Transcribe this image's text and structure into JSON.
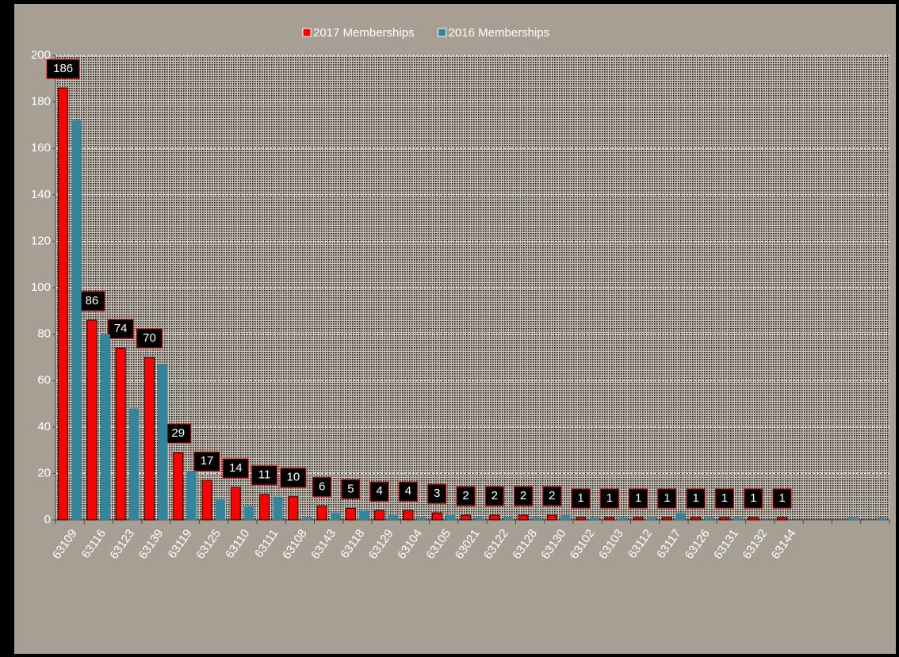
{
  "chart_data": {
    "type": "bar",
    "categories": [
      "63109",
      "63116",
      "63123",
      "63139",
      "63119",
      "63125",
      "63110",
      "63111",
      "63108",
      "63143",
      "63118",
      "63129",
      "63104",
      "63105",
      "63021",
      "63122",
      "63128",
      "63130",
      "63102",
      "63103",
      "63112",
      "63117",
      "63126",
      "63131",
      "63132",
      "63144",
      null,
      null,
      null
    ],
    "series": [
      {
        "name": "2017 Memberships",
        "color": "#ff0000",
        "values": [
          186,
          86,
          74,
          70,
          29,
          17,
          14,
          11,
          10,
          6,
          5,
          4,
          4,
          3,
          2,
          2,
          2,
          2,
          1,
          1,
          1,
          1,
          1,
          1,
          1,
          1,
          null,
          null,
          null
        ],
        "data_labels": true
      },
      {
        "name": "2016 Memberships",
        "color": "#31859c",
        "values": [
          172,
          80,
          48,
          67,
          21,
          9,
          6,
          10,
          1,
          3,
          4,
          2,
          1,
          2,
          1,
          1,
          1,
          2,
          1,
          1,
          1,
          3,
          1,
          1,
          0,
          0,
          0,
          1,
          1
        ]
      }
    ],
    "ylim": [
      0,
      200
    ],
    "yticks": [
      0,
      20,
      40,
      60,
      80,
      100,
      120,
      140,
      160,
      180,
      200
    ],
    "grid": true,
    "legend": "top"
  }
}
